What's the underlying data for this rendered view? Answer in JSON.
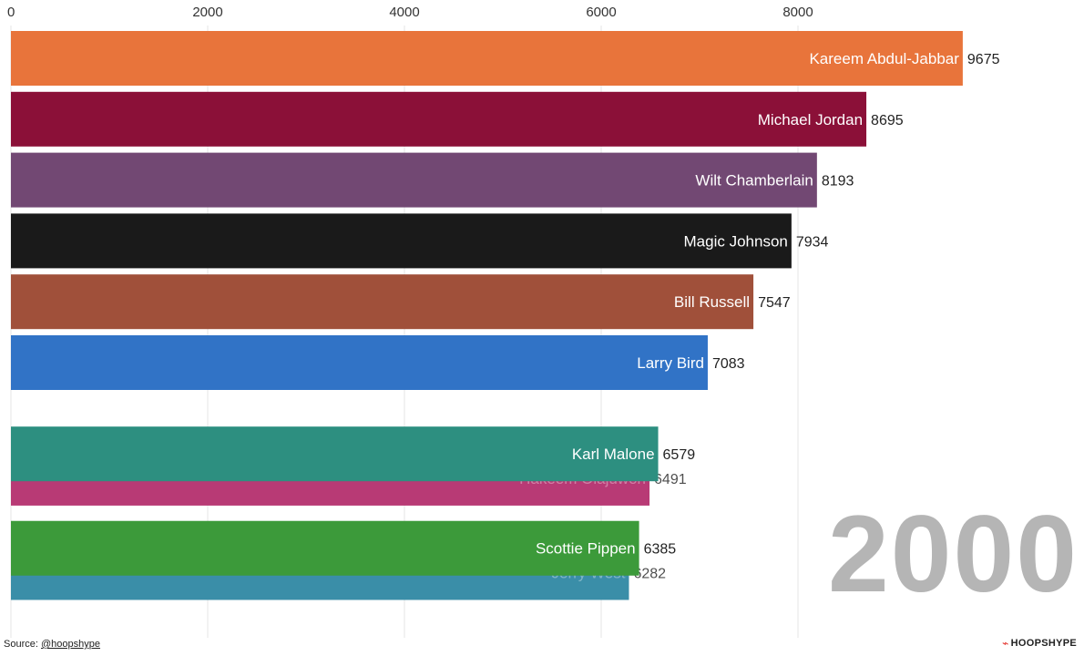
{
  "chart_data": {
    "type": "bar",
    "orientation": "horizontal",
    "title": "",
    "year_label": "2000",
    "xlim": [
      0,
      10000
    ],
    "xticks": [
      0,
      2000,
      4000,
      6000,
      8000
    ],
    "tick_labels": [
      "0",
      "2000",
      "4000",
      "6000",
      "8000"
    ],
    "series": [
      {
        "name": "Kareem Abdul-Jabbar",
        "value": 9675,
        "display": "9675",
        "color": "#e8743b",
        "rank": 1
      },
      {
        "name": "Michael Jordan",
        "value": 8695,
        "display": "8695",
        "color": "#8b1038",
        "rank": 2
      },
      {
        "name": "Wilt Chamberlain",
        "value": 8193,
        "display": "8193",
        "color": "#724873",
        "rank": 3
      },
      {
        "name": "Magic Johnson",
        "value": 7934,
        "display": "7934",
        "color": "#1a1a1a",
        "rank": 4
      },
      {
        "name": "Bill Russell",
        "value": 7547,
        "display": "7547",
        "color": "#a0503a",
        "rank": 5
      },
      {
        "name": "Larry Bird",
        "value": 7083,
        "display": "7083",
        "color": "#3173c6",
        "rank": 6
      },
      {
        "name": "Hakeem Olajuwon",
        "value": 6491,
        "display": "6491",
        "color": "#b83a75",
        "rank": 7.9,
        "dim_label": true
      },
      {
        "name": "Karl Malone",
        "value": 6579,
        "display": "6579",
        "color": "#2d8f80",
        "rank": 7.5
      },
      {
        "name": "Jerry West",
        "value": 6282,
        "display": "6282",
        "color": "#3a8ea8",
        "rank": 9.45,
        "dim_label": true
      },
      {
        "name": "Scottie Pippen",
        "value": 6385,
        "display": "6385",
        "color": "#3c9a3a",
        "rank": 9.05
      }
    ]
  },
  "footer": {
    "source_prefix": "Source: ",
    "source_handle": "@hoopshype",
    "brand": "HOOPSHYPE",
    "brand_icon": "pulse-icon"
  }
}
